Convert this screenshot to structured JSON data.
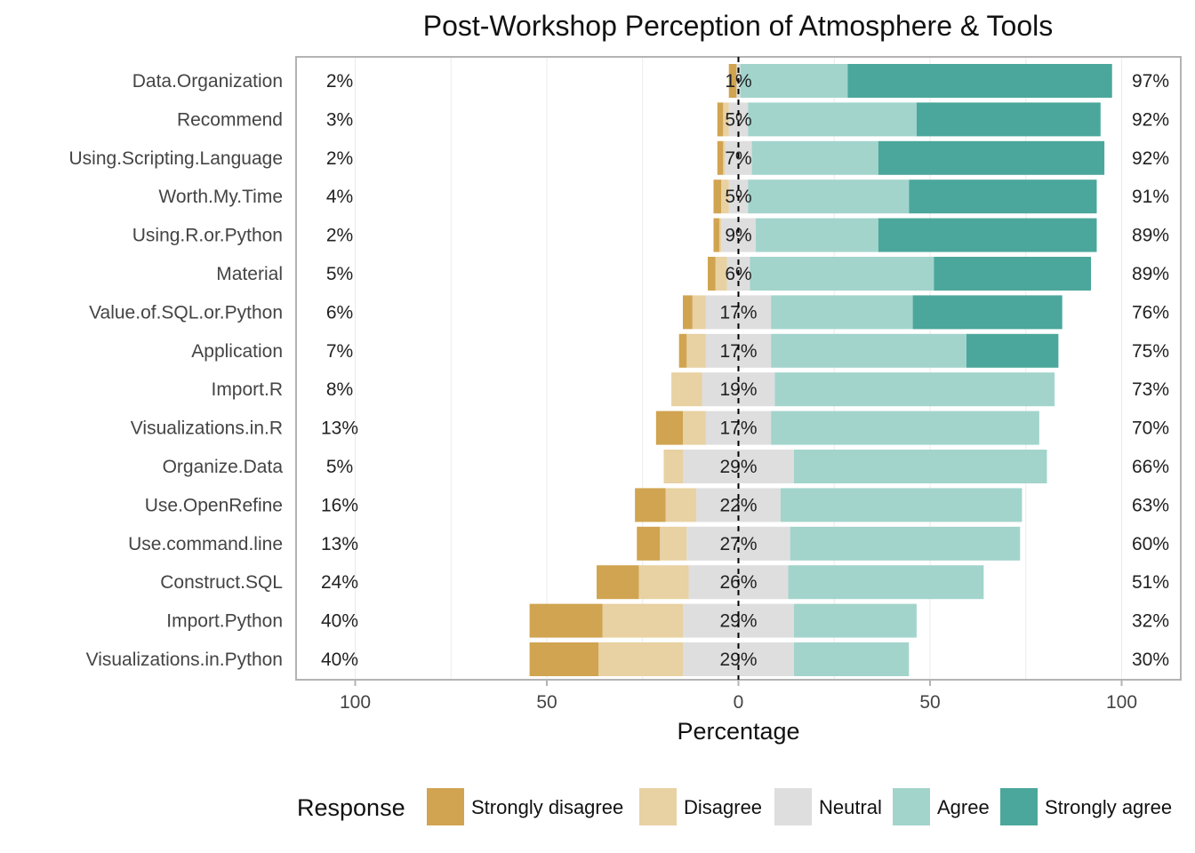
{
  "chart_data": {
    "type": "bar",
    "orientation": "horizontal-diverging",
    "title": "Post-Workshop Perception of Atmosphere & Tools",
    "xlabel": "Percentage",
    "xlim": [
      -100,
      100
    ],
    "xticks": [
      -100,
      -50,
      0,
      50,
      100
    ],
    "xtick_labels": [
      "100",
      "50",
      "0",
      "50",
      "100"
    ],
    "legend_title": "Response",
    "legend_position": "bottom",
    "series": [
      {
        "name": "Strongly disagree",
        "color": "#D0A450"
      },
      {
        "name": "Disagree",
        "color": "#E8D1A2"
      },
      {
        "name": "Neutral",
        "color": "#DEDEDE"
      },
      {
        "name": "Agree",
        "color": "#A2D4CC"
      },
      {
        "name": "Strongly agree",
        "color": "#4BA79B"
      }
    ],
    "categories": [
      "Data.Organization",
      "Recommend",
      "Using.Scripting.Language",
      "Worth.My.Time",
      "Using.R.or.Python",
      "Material",
      "Value.of.SQL.or.Python",
      "Application",
      "Import.R",
      "Visualizations.in.R",
      "Organize.Data",
      "Use.OpenRefine",
      "Use.command.line",
      "Construct.SQL",
      "Import.Python",
      "Visualizations.in.Python"
    ],
    "values": {
      "Strongly disagree": [
        2,
        1.5,
        1.5,
        2,
        1.5,
        2,
        2.5,
        2,
        0,
        7,
        0,
        8,
        6,
        11,
        19,
        18
      ],
      "Disagree": [
        0,
        1.5,
        0.5,
        2,
        0.5,
        3,
        3.5,
        5,
        8,
        6,
        5,
        8,
        7,
        13,
        21,
        22
      ],
      "Neutral": [
        1,
        5,
        7,
        5,
        9,
        6,
        17,
        17,
        19,
        17,
        29,
        22,
        27,
        26,
        29,
        29
      ],
      "Agree": [
        28,
        44,
        33,
        42,
        32,
        48,
        37,
        51,
        73,
        70,
        66,
        63,
        60,
        51,
        32,
        30
      ],
      "Strongly agree": [
        69,
        48,
        59,
        49,
        57,
        41,
        39,
        24,
        0,
        0,
        0,
        0,
        0,
        0,
        0,
        0
      ]
    },
    "left_labels": [
      "2%",
      "3%",
      "2%",
      "4%",
      "2%",
      "5%",
      "6%",
      "7%",
      "8%",
      "13%",
      "5%",
      "16%",
      "13%",
      "24%",
      "40%",
      "40%"
    ],
    "center_labels": [
      "1%",
      "5%",
      "7%",
      "5%",
      "9%",
      "6%",
      "17%",
      "17%",
      "19%",
      "17%",
      "29%",
      "22%",
      "27%",
      "26%",
      "29%",
      "29%"
    ],
    "right_labels": [
      "97%",
      "92%",
      "92%",
      "91%",
      "89%",
      "89%",
      "76%",
      "75%",
      "73%",
      "70%",
      "66%",
      "63%",
      "60%",
      "51%",
      "32%",
      "30%"
    ],
    "grid": true
  }
}
